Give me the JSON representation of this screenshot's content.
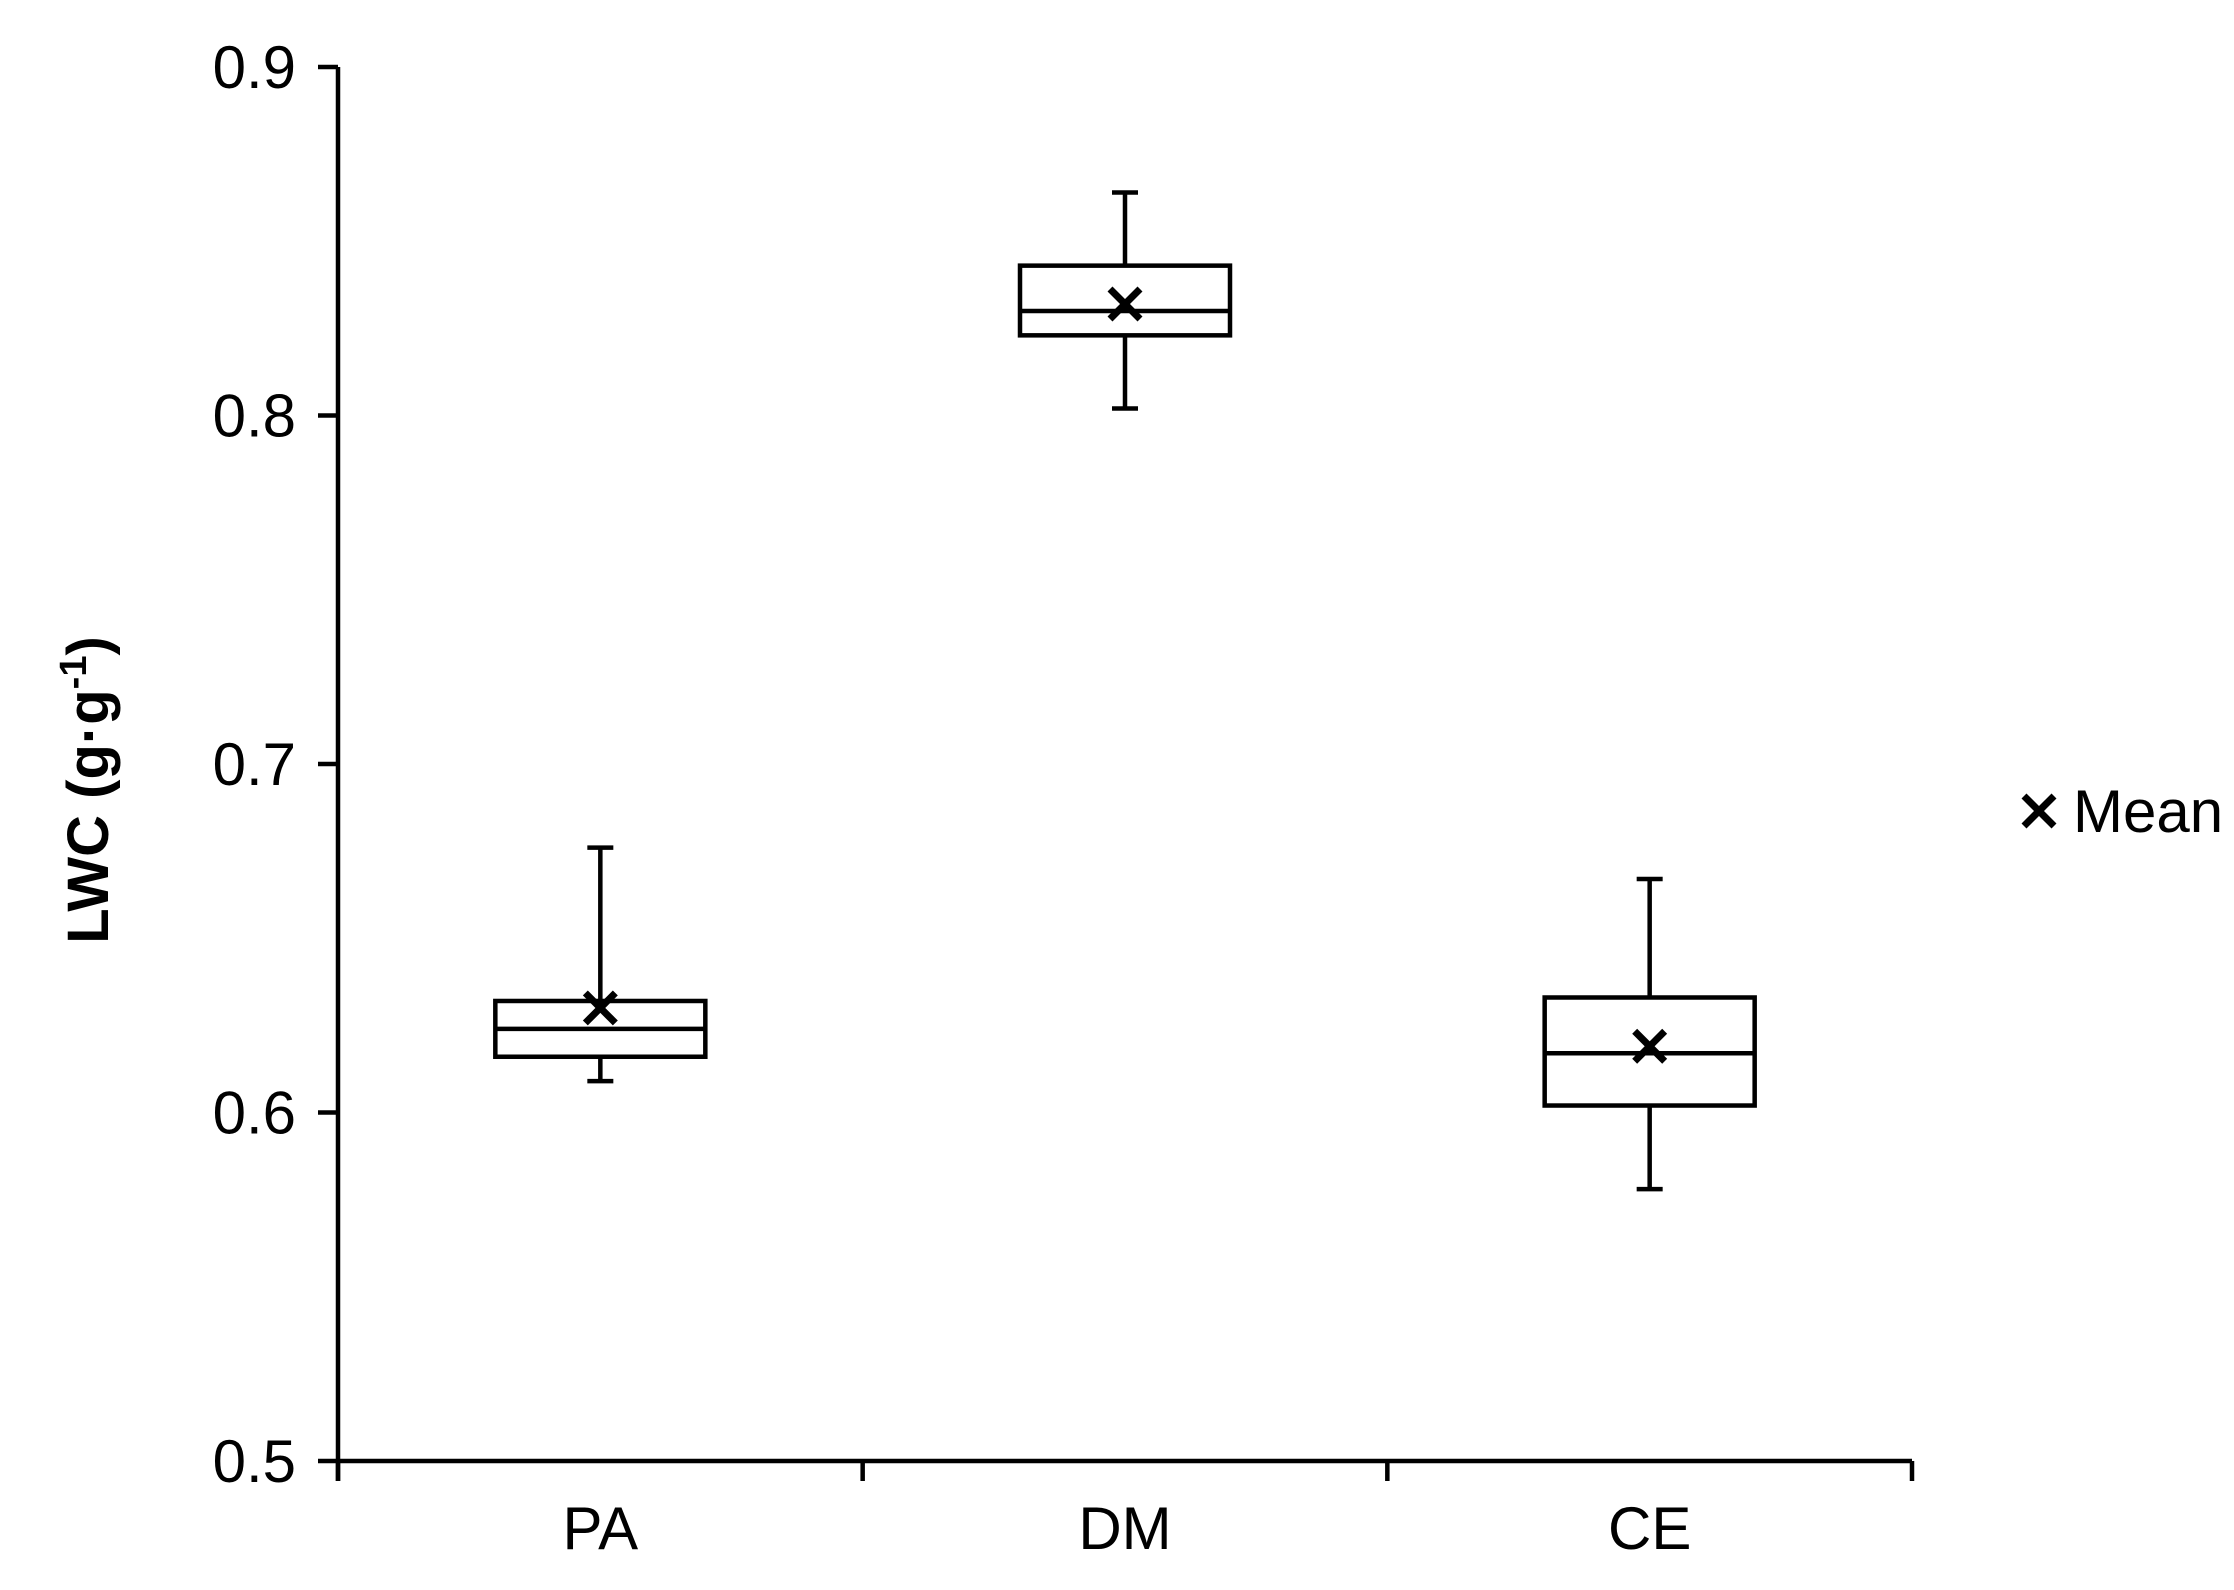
{
  "chart_data": {
    "type": "box",
    "ylabel": "LWC (g·g",
    "ylabel_sup": "-1",
    "ylabel_close": ")",
    "ylim": [
      0.5,
      0.9
    ],
    "yticks": [
      "0.5",
      "0.6",
      "0.7",
      "0.8",
      "0.9"
    ],
    "categories": [
      "PA",
      "DM",
      "CE"
    ],
    "boxes": [
      {
        "category": "PA",
        "min": 0.609,
        "q1": 0.616,
        "median": 0.624,
        "q3": 0.632,
        "max": 0.676,
        "mean": 0.63
      },
      {
        "category": "DM",
        "min": 0.802,
        "q1": 0.823,
        "median": 0.83,
        "q3": 0.843,
        "max": 0.864,
        "mean": 0.832
      },
      {
        "category": "CE",
        "min": 0.578,
        "q1": 0.602,
        "median": 0.617,
        "q3": 0.633,
        "max": 0.667,
        "mean": 0.619
      }
    ],
    "legend": {
      "entries": [
        "Mean"
      ],
      "position": "right"
    },
    "grid": false
  }
}
